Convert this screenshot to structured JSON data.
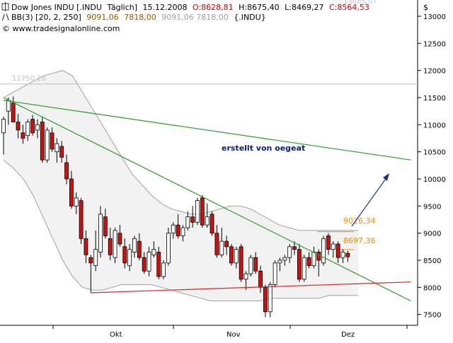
{
  "header": {
    "line1": {
      "instrument": "Dow Jones INDU [.INDU",
      "period": "Täglich]",
      "date": "15.12.2008",
      "open": "O:8628,81",
      "high": "H:8675,40",
      "low": "L:8469,27",
      "close": "C:8564,53"
    },
    "line2": {
      "indicator": "BB(3) [20, 2, 250]",
      "upper": "9091,06",
      "middle": "7818,00",
      "values_repeat": "9091,06 7818,00",
      "symbol": "{.INDU}"
    },
    "copyright": "© www.tradesignalonline.com",
    "faded_top_label": "13085,07",
    "currency_label": "$"
  },
  "labels": {
    "annotation": "erstellt von oegeat",
    "level_11750": "11750,28",
    "level_9026": "9026,34",
    "level_8697": "8697,36"
  },
  "colors": {
    "up_candle": "#ffffff",
    "down_candle": "#cc1111",
    "bollinger": "#a0a0a0",
    "green_trendline": "#2a9a2a",
    "red_support": "#dd2222",
    "arrow": "#1a2f8a",
    "annotation": "#0a1f7a",
    "orange_labels": "#f08c00"
  },
  "chart_data": {
    "type": "candlestick",
    "title": "Dow Jones INDU [.INDU Täglich]",
    "ylim": [
      7300,
      13100
    ],
    "yticks": [
      7500,
      8000,
      8500,
      9000,
      9500,
      10000,
      10500,
      11000,
      11500,
      12000,
      12500,
      13000
    ],
    "ytick_labels": [
      "7500",
      "8000",
      "8500",
      "9000",
      "9500",
      "10000",
      "10500",
      "11000",
      "11500",
      "12000",
      "12500",
      "13000"
    ],
    "x_month_labels": [
      "Okt",
      "Nov",
      "Dez"
    ],
    "candles": [
      {
        "o": 10850,
        "h": 11150,
        "l": 10450,
        "c": 11100
      },
      {
        "o": 11250,
        "h": 11500,
        "l": 11000,
        "c": 11450
      },
      {
        "o": 11400,
        "h": 11520,
        "l": 11100,
        "c": 11050
      },
      {
        "o": 11050,
        "h": 11200,
        "l": 10750,
        "c": 10900
      },
      {
        "o": 10850,
        "h": 11000,
        "l": 10650,
        "c": 10750
      },
      {
        "o": 10800,
        "h": 11100,
        "l": 10700,
        "c": 11050
      },
      {
        "o": 11100,
        "h": 11180,
        "l": 10800,
        "c": 10850
      },
      {
        "o": 10900,
        "h": 11100,
        "l": 10750,
        "c": 11000
      },
      {
        "o": 11050,
        "h": 11150,
        "l": 10300,
        "c": 10350
      },
      {
        "o": 10350,
        "h": 10950,
        "l": 10300,
        "c": 10900
      },
      {
        "o": 10850,
        "h": 10950,
        "l": 10500,
        "c": 10550
      },
      {
        "o": 10500,
        "h": 10750,
        "l": 10300,
        "c": 10650
      },
      {
        "o": 10600,
        "h": 10700,
        "l": 10300,
        "c": 10400
      },
      {
        "o": 10300,
        "h": 10450,
        "l": 9900,
        "c": 10000
      },
      {
        "o": 10000,
        "h": 10150,
        "l": 9450,
        "c": 9500
      },
      {
        "o": 9500,
        "h": 9750,
        "l": 9350,
        "c": 9650
      },
      {
        "o": 9600,
        "h": 9650,
        "l": 8800,
        "c": 8900
      },
      {
        "o": 8900,
        "h": 9050,
        "l": 8450,
        "c": 8600
      },
      {
        "o": 8550,
        "h": 8600,
        "l": 7900,
        "c": 8450
      },
      {
        "o": 8400,
        "h": 9050,
        "l": 8300,
        "c": 8700
      },
      {
        "o": 8650,
        "h": 9500,
        "l": 8550,
        "c": 9350
      },
      {
        "o": 9300,
        "h": 9450,
        "l": 8900,
        "c": 8950
      },
      {
        "o": 8900,
        "h": 9100,
        "l": 8500,
        "c": 8600
      },
      {
        "o": 8550,
        "h": 9100,
        "l": 8450,
        "c": 9050
      },
      {
        "o": 9000,
        "h": 9150,
        "l": 8750,
        "c": 8800
      },
      {
        "o": 8750,
        "h": 8900,
        "l": 8350,
        "c": 8450
      },
      {
        "o": 8400,
        "h": 8800,
        "l": 8300,
        "c": 8700
      },
      {
        "o": 8650,
        "h": 8950,
        "l": 8550,
        "c": 8900
      },
      {
        "o": 8850,
        "h": 9000,
        "l": 8500,
        "c": 8550
      },
      {
        "o": 8550,
        "h": 8650,
        "l": 8250,
        "c": 8300
      },
      {
        "o": 8300,
        "h": 8750,
        "l": 8200,
        "c": 8650
      },
      {
        "o": 8600,
        "h": 8850,
        "l": 8550,
        "c": 8700
      },
      {
        "o": 8650,
        "h": 8750,
        "l": 8150,
        "c": 8200
      },
      {
        "o": 8200,
        "h": 8500,
        "l": 8150,
        "c": 8450
      },
      {
        "o": 8450,
        "h": 9100,
        "l": 8400,
        "c": 9000
      },
      {
        "o": 9000,
        "h": 9200,
        "l": 8900,
        "c": 9150
      },
      {
        "o": 9150,
        "h": 9350,
        "l": 8900,
        "c": 8950
      },
      {
        "o": 8950,
        "h": 9150,
        "l": 8850,
        "c": 9100
      },
      {
        "o": 9100,
        "h": 9400,
        "l": 9050,
        "c": 9300
      },
      {
        "o": 9300,
        "h": 9500,
        "l": 9100,
        "c": 9200
      },
      {
        "o": 9200,
        "h": 9650,
        "l": 9150,
        "c": 9600
      },
      {
        "o": 9650,
        "h": 9700,
        "l": 9100,
        "c": 9150
      },
      {
        "o": 9150,
        "h": 9550,
        "l": 9100,
        "c": 9300
      },
      {
        "o": 9350,
        "h": 9400,
        "l": 8950,
        "c": 9000
      },
      {
        "o": 9000,
        "h": 9150,
        "l": 8550,
        "c": 8600
      },
      {
        "o": 8600,
        "h": 9100,
        "l": 8550,
        "c": 8850
      },
      {
        "o": 8850,
        "h": 8950,
        "l": 8600,
        "c": 8750
      },
      {
        "o": 8750,
        "h": 8800,
        "l": 8400,
        "c": 8450
      },
      {
        "o": 8450,
        "h": 8750,
        "l": 8350,
        "c": 8700
      },
      {
        "o": 8750,
        "h": 8800,
        "l": 8100,
        "c": 8150
      },
      {
        "o": 8150,
        "h": 8300,
        "l": 7950,
        "c": 8250
      },
      {
        "o": 8250,
        "h": 8600,
        "l": 8200,
        "c": 8550
      },
      {
        "o": 8550,
        "h": 8650,
        "l": 8250,
        "c": 8300
      },
      {
        "o": 8300,
        "h": 8400,
        "l": 7900,
        "c": 8000
      },
      {
        "o": 8000,
        "h": 8050,
        "l": 7450,
        "c": 7550
      },
      {
        "o": 7550,
        "h": 8100,
        "l": 7450,
        "c": 8050
      },
      {
        "o": 8050,
        "h": 8500,
        "l": 8000,
        "c": 8450
      },
      {
        "o": 8450,
        "h": 8550,
        "l": 8300,
        "c": 8500
      },
      {
        "o": 8500,
        "h": 8600,
        "l": 8400,
        "c": 8550
      },
      {
        "o": 8550,
        "h": 8800,
        "l": 8450,
        "c": 8750
      },
      {
        "o": 8750,
        "h": 8850,
        "l": 8600,
        "c": 8700
      },
      {
        "o": 8700,
        "h": 8800,
        "l": 8100,
        "c": 8150
      },
      {
        "o": 8150,
        "h": 8600,
        "l": 8100,
        "c": 8550
      },
      {
        "o": 8550,
        "h": 8650,
        "l": 8350,
        "c": 8400
      },
      {
        "o": 8400,
        "h": 8750,
        "l": 8350,
        "c": 8650
      },
      {
        "o": 8650,
        "h": 8700,
        "l": 8200,
        "c": 8500
      },
      {
        "o": 8450,
        "h": 8950,
        "l": 8400,
        "c": 8900
      },
      {
        "o": 8950,
        "h": 9000,
        "l": 8600,
        "c": 8700
      },
      {
        "o": 8700,
        "h": 8850,
        "l": 8550,
        "c": 8800
      },
      {
        "o": 8800,
        "h": 8850,
        "l": 8450,
        "c": 8550
      },
      {
        "o": 8550,
        "h": 8700,
        "l": 8450,
        "c": 8650
      },
      {
        "o": 8628.81,
        "h": 8675.4,
        "l": 8469.27,
        "c": 8564.53
      }
    ],
    "bollinger_upper": [
      11500,
      11600,
      11700,
      11800,
      11900,
      11950,
      12000,
      11900,
      11600,
      11300,
      11000,
      10700,
      10400,
      10100,
      9900,
      9700,
      9550,
      9450,
      9400,
      9350,
      9350,
      9400,
      9450,
      9500,
      9500,
      9450,
      9350,
      9250,
      9150,
      9100,
      9050,
      9050,
      9050,
      9050,
      9050,
      9050,
      9050
    ],
    "bollinger_lower": [
      10350,
      10200,
      10000,
      9700,
      9300,
      8900,
      8500,
      8200,
      8000,
      7950,
      7950,
      8000,
      8050,
      8050,
      8050,
      8050,
      8000,
      7950,
      7900,
      7850,
      7800,
      7750,
      7750,
      7750,
      7750,
      7750,
      7750,
      7800,
      7800,
      7800,
      7800,
      7800,
      7800,
      7850,
      7850,
      7850,
      7850
    ],
    "green_trendline": {
      "from": [
        0,
        11500
      ],
      "to": [
        84,
        7750
      ]
    },
    "green_trendline_2": {
      "from": [
        0,
        11450
      ],
      "to": [
        84,
        10350
      ]
    },
    "red_support": {
      "from": [
        18,
        7900
      ],
      "to": [
        84,
        8100
      ]
    },
    "horizontal_level": 11750.28
  }
}
